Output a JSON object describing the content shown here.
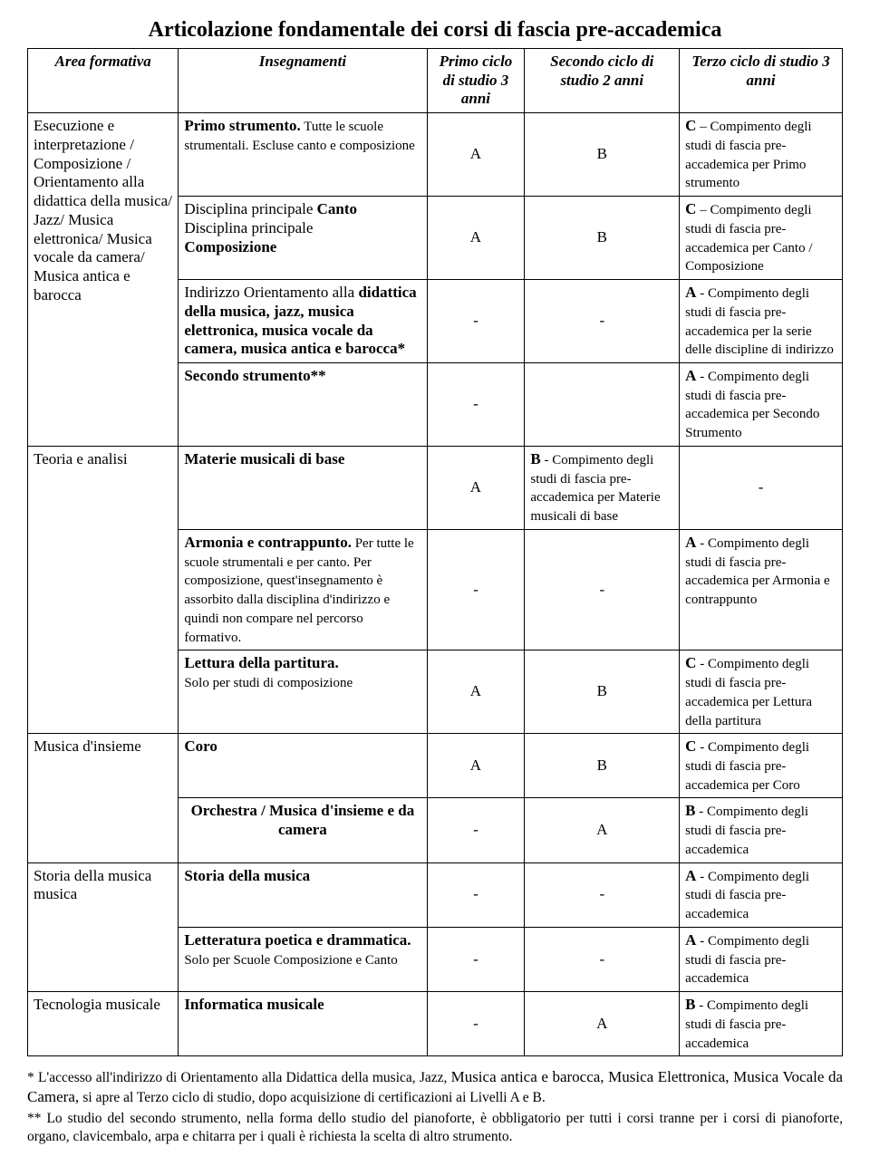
{
  "title": "Articolazione fondamentale dei corsi di fascia pre-accademica",
  "headers": {
    "area": "Area formativa",
    "insegn": "Insegnamenti",
    "primo": "Primo ciclo di studio 3 anni",
    "secondo": "Secondo ciclo di studio 2 anni",
    "terzo": "Terzo ciclo di studio 3 anni"
  },
  "area1": "Esecuzione e interpretazione / Composizione / Orientamento alla didattica della musica/ Jazz/ Musica elettronica/ Musica vocale da camera/ Musica antica e barocca",
  "r1": {
    "ins_lead": "Primo strumento.",
    "ins_tail": " Tutte le scuole strumentali. Escluse canto e composizione",
    "c3": "A",
    "c4": "B",
    "c5_lead": "C",
    "c5_tail": " – Compimento degli studi di fascia pre-accademica per Primo strumento"
  },
  "r2": {
    "ins_l1": "Disciplina principale ",
    "ins_b1": "Canto",
    "ins_l2": "Disciplina principale ",
    "ins_b2": "Composizione",
    "c3": "A",
    "c4": "B",
    "c5_lead": "C",
    "c5_tail": " – Compimento degli studi di fascia pre-accademica per Canto / Composizione"
  },
  "r3": {
    "ins_l1": "Indirizzo Orientamento alla ",
    "ins_b1": "didattica della musica, jazz, musica elettronica, musica vocale da camera, musica antica e barocca*",
    "c3": "-",
    "c4": "-",
    "c5_lead": "A",
    "c5_tail": " - Compimento degli studi di fascia pre-accademica per la serie delle discipline di indirizzo"
  },
  "r4": {
    "ins": "Secondo strumento**",
    "c3": "-",
    "c4": "",
    "c5_lead": "A",
    "c5_tail": " - Compimento degli studi di fascia pre-accademica per Secondo Strumento"
  },
  "area2": "Teoria e analisi",
  "r5": {
    "ins": "Materie musicali di base",
    "c3": "A",
    "c4_lead": "B",
    "c4_tail": " - Compimento degli studi di fascia pre-accademica per Materie musicali di base",
    "c5": "-"
  },
  "r6": {
    "ins_lead": "Armonia e contrappunto.",
    "ins_tail": " Per tutte le scuole strumentali e per canto. Per composizione, quest'insegnamento è assorbito dalla disciplina d'indirizzo e quindi non compare nel percorso formativo.",
    "c3": "-",
    "c4": "-",
    "c5_lead": "A",
    "c5_tail": " - Compimento degli studi di fascia pre-accademica per Armonia e contrappunto"
  },
  "r7": {
    "ins_lead": "Lettura della partitura.",
    "ins_tail": "Solo per studi di composizione",
    "c3": "A",
    "c4": "B",
    "c5_lead": "C",
    "c5_tail": " - Compimento degli studi di fascia pre-accademica per Lettura della partitura"
  },
  "area3": "Musica d'insieme",
  "r8": {
    "ins": "Coro",
    "c3": "A",
    "c4": "B",
    "c5_lead": "C",
    "c5_tail": " - Compimento degli studi di fascia pre-accademica per Coro"
  },
  "r9": {
    "ins": "Orchestra / Musica d'insieme e da camera",
    "c3": "-",
    "c4": "A",
    "c5_lead": "B",
    "c5_tail": " - Compimento degli studi di fascia pre-accademica"
  },
  "area4": "Storia della musica musica",
  "r10": {
    "ins": "Storia della musica",
    "c3": "-",
    "c4": "-",
    "c5_lead": "A",
    "c5_tail": " - Compimento degli studi di fascia pre-accademica"
  },
  "r11": {
    "ins_lead": "Letteratura poetica e drammatica.",
    "ins_tail": " Solo per Scuole Composizione e Canto",
    "c3": "-",
    "c4": "-",
    "c5_lead": "A",
    "c5_tail": " - Compimento degli studi di fascia pre-accademica"
  },
  "area5": "Tecnologia musicale",
  "r12": {
    "ins": "Informatica musicale",
    "c3": "-",
    "c4": "A",
    "c5_lead": "B",
    "c5_tail": " - Compimento degli studi di fascia pre-accademica"
  },
  "foot1_a": "* L'accesso all'indirizzo di Orientamento alla Didattica della musica, Jazz, ",
  "foot1_b": "Musica antica e barocca, Musica Elettronica, Musica Vocale da Camera, ",
  "foot1_c": "si apre al Terzo ciclo di studio, dopo acquisizione di certificazioni ai Livelli A e B.",
  "foot2": "** Lo studio del secondo strumento, nella forma dello studio del pianoforte, è obbligatorio per tutti i corsi tranne per i corsi di pianoforte, organo, clavicembalo, arpa e chitarra per i quali è richiesta la scelta di altro strumento."
}
